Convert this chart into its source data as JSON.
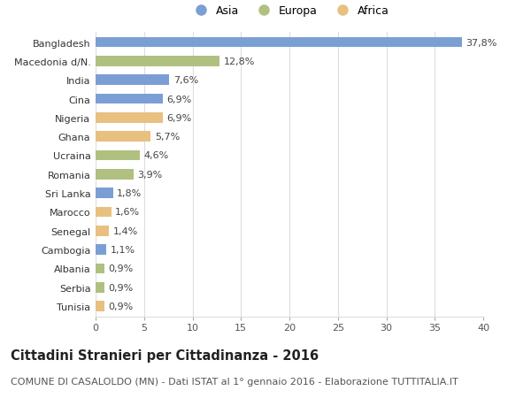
{
  "countries": [
    "Bangladesh",
    "Macedonia d/N.",
    "India",
    "Cina",
    "Nigeria",
    "Ghana",
    "Ucraina",
    "Romania",
    "Sri Lanka",
    "Marocco",
    "Senegal",
    "Cambogia",
    "Albania",
    "Serbia",
    "Tunisia"
  ],
  "values": [
    37.8,
    12.8,
    7.6,
    6.9,
    6.9,
    5.7,
    4.6,
    3.9,
    1.8,
    1.6,
    1.4,
    1.1,
    0.9,
    0.9,
    0.9
  ],
  "labels": [
    "37,8%",
    "12,8%",
    "7,6%",
    "6,9%",
    "6,9%",
    "5,7%",
    "4,6%",
    "3,9%",
    "1,8%",
    "1,6%",
    "1,4%",
    "1,1%",
    "0,9%",
    "0,9%",
    "0,9%"
  ],
  "continents": [
    "Asia",
    "Europa",
    "Asia",
    "Asia",
    "Africa",
    "Africa",
    "Europa",
    "Europa",
    "Asia",
    "Africa",
    "Africa",
    "Asia",
    "Europa",
    "Europa",
    "Africa"
  ],
  "colors": {
    "Asia": "#7b9fd4",
    "Europa": "#b0c080",
    "Africa": "#e8c080"
  },
  "legend_order": [
    "Asia",
    "Europa",
    "Africa"
  ],
  "xlim": [
    0,
    40
  ],
  "xticks": [
    0,
    5,
    10,
    15,
    20,
    25,
    30,
    35,
    40
  ],
  "title": "Cittadini Stranieri per Cittadinanza - 2016",
  "subtitle": "COMUNE DI CASALOLDO (MN) - Dati ISTAT al 1° gennaio 2016 - Elaborazione TUTTITALIA.IT",
  "bg_color": "#ffffff",
  "grid_color": "#dddddd",
  "bar_height": 0.55,
  "title_fontsize": 10.5,
  "subtitle_fontsize": 8,
  "label_fontsize": 8,
  "tick_fontsize": 8,
  "legend_fontsize": 9
}
